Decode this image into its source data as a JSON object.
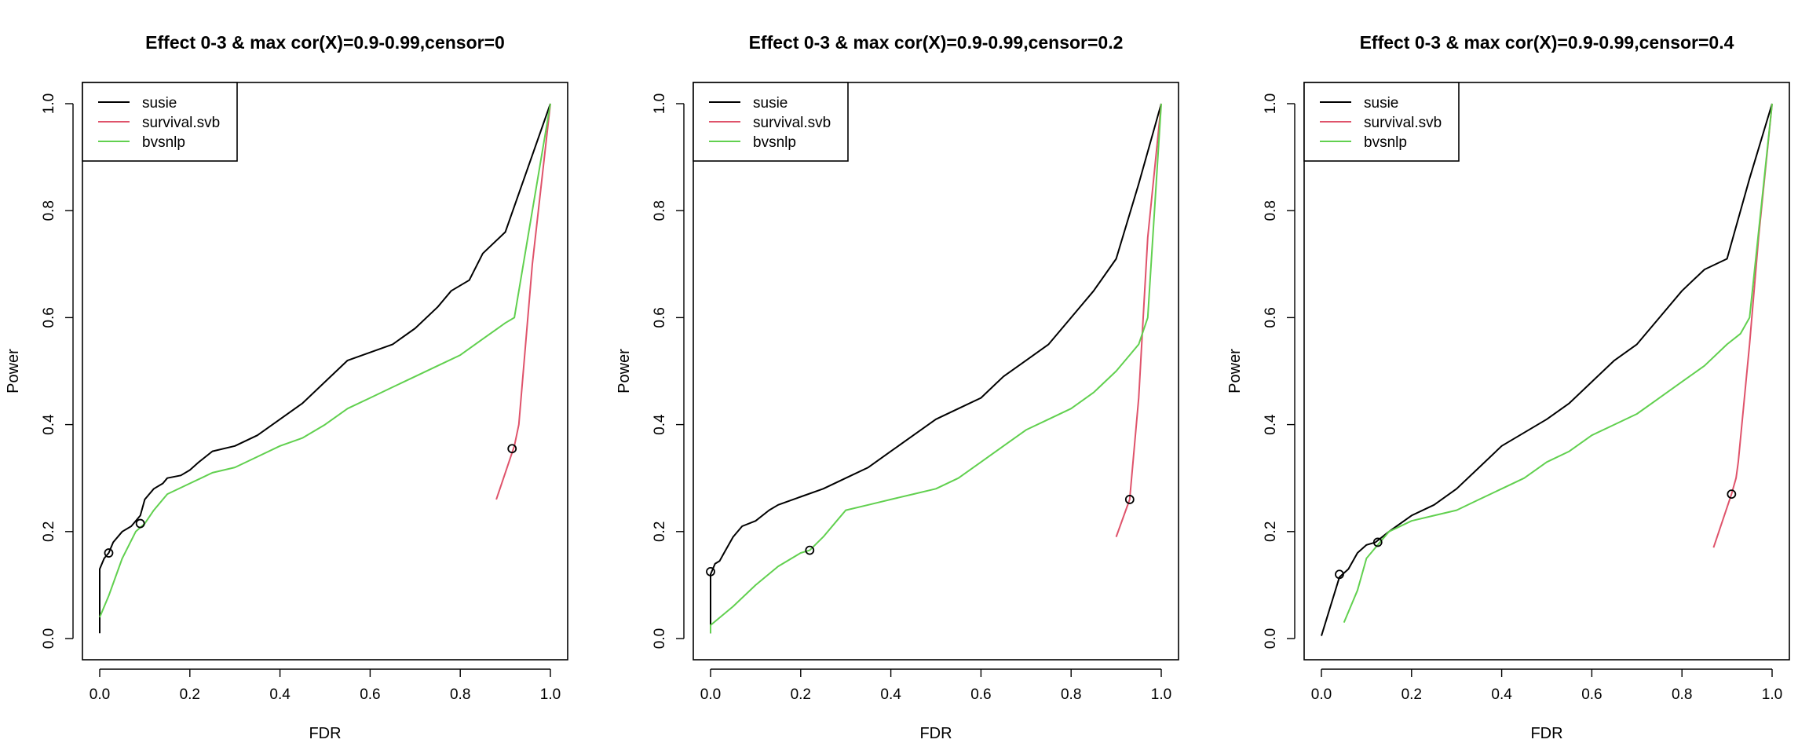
{
  "figure": {
    "axis_labels": {
      "x": "FDR",
      "y": "Power"
    }
  },
  "chart_data": [
    {
      "type": "line",
      "title": "Effect 0-3 & max cor(X)=0.9-0.99,censor=0",
      "xlabel": "FDR",
      "ylabel": "Power",
      "xlim": [
        0,
        1
      ],
      "ylim": [
        0,
        1
      ],
      "xticks": [
        "0.0",
        "0.2",
        "0.4",
        "0.6",
        "0.8",
        "1.0"
      ],
      "yticks": [
        "0.0",
        "0.2",
        "0.4",
        "0.6",
        "0.8",
        "1.0"
      ],
      "grid": false,
      "legend_position": "top-left",
      "series": [
        {
          "name": "susie",
          "color": "#000000",
          "x": [
            0.0,
            0.0,
            0.01,
            0.02,
            0.03,
            0.05,
            0.07,
            0.09,
            0.1,
            0.11,
            0.12,
            0.14,
            0.15,
            0.18,
            0.2,
            0.22,
            0.25,
            0.3,
            0.35,
            0.4,
            0.45,
            0.5,
            0.55,
            0.6,
            0.65,
            0.7,
            0.75,
            0.78,
            0.82,
            0.85,
            0.9,
            0.95,
            1.0
          ],
          "y": [
            0.01,
            0.13,
            0.15,
            0.16,
            0.18,
            0.2,
            0.21,
            0.23,
            0.26,
            0.27,
            0.28,
            0.29,
            0.3,
            0.305,
            0.315,
            0.33,
            0.35,
            0.36,
            0.38,
            0.41,
            0.44,
            0.48,
            0.52,
            0.535,
            0.55,
            0.58,
            0.62,
            0.65,
            0.67,
            0.72,
            0.76,
            0.88,
            1.0
          ],
          "markers": [
            {
              "x": 0.02,
              "y": 0.16
            }
          ]
        },
        {
          "name": "survival.svb",
          "color": "#df536b",
          "x": [
            0.88,
            0.92,
            0.93,
            0.96,
            1.0
          ],
          "y": [
            0.26,
            0.36,
            0.4,
            0.7,
            1.0
          ],
          "markers": [
            {
              "x": 0.915,
              "y": 0.355
            }
          ]
        },
        {
          "name": "bvsnlp",
          "color": "#61d04f",
          "x": [
            0.0,
            0.02,
            0.05,
            0.08,
            0.1,
            0.12,
            0.15,
            0.2,
            0.25,
            0.3,
            0.35,
            0.4,
            0.45,
            0.5,
            0.55,
            0.6,
            0.65,
            0.7,
            0.75,
            0.8,
            0.85,
            0.9,
            0.92,
            0.96,
            1.0
          ],
          "y": [
            0.04,
            0.08,
            0.15,
            0.2,
            0.215,
            0.24,
            0.27,
            0.29,
            0.31,
            0.32,
            0.34,
            0.36,
            0.375,
            0.4,
            0.43,
            0.45,
            0.47,
            0.49,
            0.51,
            0.53,
            0.56,
            0.59,
            0.6,
            0.8,
            1.0
          ],
          "markers": [
            {
              "x": 0.09,
              "y": 0.215
            }
          ]
        }
      ]
    },
    {
      "type": "line",
      "title": "Effect 0-3 & max cor(X)=0.9-0.99,censor=0.2",
      "xlabel": "FDR",
      "ylabel": "Power",
      "xlim": [
        0,
        1
      ],
      "ylim": [
        0,
        1
      ],
      "xticks": [
        "0.0",
        "0.2",
        "0.4",
        "0.6",
        "0.8",
        "1.0"
      ],
      "yticks": [
        "0.0",
        "0.2",
        "0.4",
        "0.6",
        "0.8",
        "1.0"
      ],
      "grid": false,
      "legend_position": "top-left",
      "series": [
        {
          "name": "susie",
          "color": "#000000",
          "x": [
            0.0,
            0.0,
            0.01,
            0.02,
            0.03,
            0.05,
            0.07,
            0.1,
            0.13,
            0.15,
            0.2,
            0.25,
            0.3,
            0.35,
            0.4,
            0.45,
            0.5,
            0.55,
            0.6,
            0.65,
            0.7,
            0.75,
            0.8,
            0.85,
            0.9,
            0.95,
            1.0
          ],
          "y": [
            0.01,
            0.12,
            0.14,
            0.145,
            0.16,
            0.19,
            0.21,
            0.22,
            0.24,
            0.25,
            0.265,
            0.28,
            0.3,
            0.32,
            0.35,
            0.38,
            0.41,
            0.43,
            0.45,
            0.49,
            0.52,
            0.55,
            0.6,
            0.65,
            0.71,
            0.85,
            1.0
          ],
          "markers": [
            {
              "x": 0.0,
              "y": 0.125
            }
          ]
        },
        {
          "name": "survival.svb",
          "color": "#df536b",
          "x": [
            0.9,
            0.93,
            0.95,
            0.96,
            0.97,
            1.0
          ],
          "y": [
            0.19,
            0.26,
            0.45,
            0.6,
            0.75,
            1.0
          ],
          "markers": [
            {
              "x": 0.93,
              "y": 0.26
            }
          ]
        },
        {
          "name": "bvsnlp",
          "color": "#61d04f",
          "x": [
            0.0,
            0.0,
            0.05,
            0.1,
            0.15,
            0.2,
            0.22,
            0.25,
            0.28,
            0.3,
            0.35,
            0.4,
            0.45,
            0.5,
            0.55,
            0.6,
            0.65,
            0.7,
            0.75,
            0.8,
            0.85,
            0.9,
            0.93,
            0.95,
            0.97,
            1.0
          ],
          "y": [
            0.01,
            0.025,
            0.06,
            0.1,
            0.135,
            0.16,
            0.165,
            0.19,
            0.22,
            0.24,
            0.25,
            0.26,
            0.27,
            0.28,
            0.3,
            0.33,
            0.36,
            0.39,
            0.41,
            0.43,
            0.46,
            0.5,
            0.53,
            0.55,
            0.6,
            1.0
          ],
          "markers": [
            {
              "x": 0.22,
              "y": 0.165
            }
          ]
        }
      ]
    },
    {
      "type": "line",
      "title": "Effect 0-3 & max cor(X)=0.9-0.99,censor=0.4",
      "xlabel": "FDR",
      "ylabel": "Power",
      "xlim": [
        0,
        1
      ],
      "ylim": [
        0,
        1
      ],
      "xticks": [
        "0.0",
        "0.2",
        "0.4",
        "0.6",
        "0.8",
        "1.0"
      ],
      "yticks": [
        "0.0",
        "0.2",
        "0.4",
        "0.6",
        "0.8",
        "1.0"
      ],
      "grid": false,
      "legend_position": "top-left",
      "series": [
        {
          "name": "susie",
          "color": "#000000",
          "x": [
            0.0,
            0.02,
            0.04,
            0.06,
            0.08,
            0.1,
            0.12,
            0.15,
            0.2,
            0.25,
            0.3,
            0.35,
            0.4,
            0.45,
            0.5,
            0.55,
            0.6,
            0.65,
            0.7,
            0.75,
            0.8,
            0.85,
            0.9,
            0.95,
            1.0
          ],
          "y": [
            0.005,
            0.06,
            0.115,
            0.13,
            0.16,
            0.175,
            0.18,
            0.2,
            0.23,
            0.25,
            0.28,
            0.32,
            0.36,
            0.385,
            0.41,
            0.44,
            0.48,
            0.52,
            0.55,
            0.6,
            0.65,
            0.69,
            0.71,
            0.86,
            1.0
          ],
          "markers": [
            {
              "x": 0.04,
              "y": 0.12
            }
          ]
        },
        {
          "name": "survival.svb",
          "color": "#df536b",
          "x": [
            0.87,
            0.91,
            0.92,
            0.925,
            0.95,
            0.97,
            1.0
          ],
          "y": [
            0.17,
            0.27,
            0.3,
            0.33,
            0.55,
            0.75,
            1.0
          ],
          "markers": [
            {
              "x": 0.91,
              "y": 0.27
            }
          ]
        },
        {
          "name": "bvsnlp",
          "color": "#61d04f",
          "x": [
            0.05,
            0.08,
            0.1,
            0.13,
            0.15,
            0.2,
            0.25,
            0.3,
            0.35,
            0.4,
            0.45,
            0.5,
            0.55,
            0.6,
            0.65,
            0.7,
            0.75,
            0.8,
            0.85,
            0.9,
            0.93,
            0.95,
            1.0
          ],
          "y": [
            0.03,
            0.09,
            0.15,
            0.18,
            0.2,
            0.22,
            0.23,
            0.24,
            0.26,
            0.28,
            0.3,
            0.33,
            0.35,
            0.38,
            0.4,
            0.42,
            0.45,
            0.48,
            0.51,
            0.55,
            0.57,
            0.6,
            1.0
          ],
          "markers": [
            {
              "x": 0.125,
              "y": 0.18
            }
          ]
        }
      ]
    }
  ]
}
